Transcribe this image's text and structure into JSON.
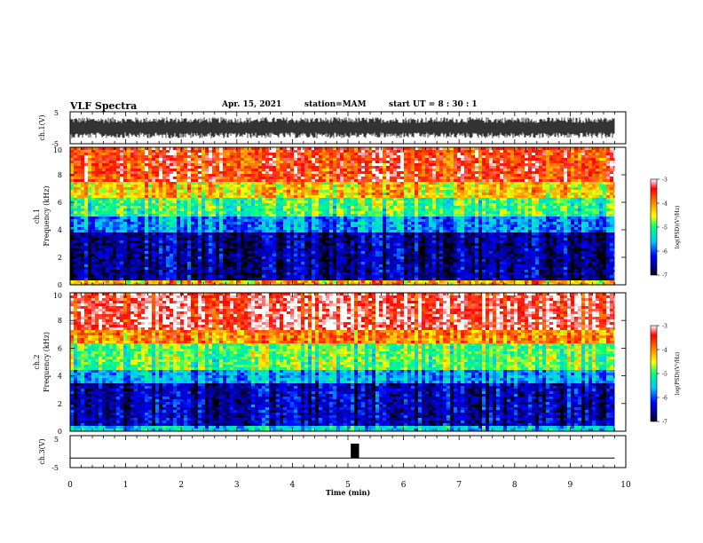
{
  "header": {
    "title": "VLF Spectra",
    "date": "Apr. 15, 2021",
    "station": "station=MAM",
    "start_ut": "start  UT =   8 : 30 : 1"
  },
  "chart_data": [
    {
      "type": "line",
      "panel": "ch1-waveform",
      "ylabel": "ch.1(V)",
      "yticks": [
        "5",
        "-5"
      ],
      "ylim": [
        -5,
        5
      ],
      "x_range": [
        0,
        9.8
      ],
      "description_values": "dense broadband signal, amplitude ~ +3 to -3 V"
    },
    {
      "type": "heatmap",
      "panel": "ch1-spectrogram",
      "ylabel": "ch.1\nFrequency (kHz)",
      "yticks": [
        "0",
        "2",
        "4",
        "6",
        "8",
        "10"
      ],
      "ylim": [
        0,
        10
      ],
      "x_range": [
        0,
        9.8
      ],
      "colorbar": {
        "label": "log(PSD)(V²/Hz)",
        "ticks": [
          "-3",
          "-4",
          "-5",
          "-6",
          "-7"
        ],
        "range": [
          -7,
          -3
        ]
      },
      "bands_log_psd": [
        {
          "freq_khz": [
            0,
            0.5
          ],
          "log_psd": -4.2
        },
        {
          "freq_khz": [
            0.5,
            4
          ],
          "log_psd": -6.6
        },
        {
          "freq_khz": [
            4,
            5
          ],
          "log_psd": -5.8
        },
        {
          "freq_khz": [
            5,
            6.5
          ],
          "log_psd": -5.0
        },
        {
          "freq_khz": [
            6.5,
            7.5
          ],
          "log_psd": -4.3
        },
        {
          "freq_khz": [
            7.5,
            10
          ],
          "log_psd": -3.6
        }
      ]
    },
    {
      "type": "heatmap",
      "panel": "ch2-spectrogram",
      "ylabel": "ch.2\nFrequency (kHz)",
      "yticks": [
        "0",
        "2",
        "4",
        "6",
        "8",
        "10"
      ],
      "ylim": [
        0,
        10
      ],
      "x_range": [
        0,
        9.8
      ],
      "colorbar": {
        "label": "log(PSD)(V²/Hz)",
        "ticks": [
          "-3",
          "-4",
          "-5",
          "-6",
          "-7"
        ],
        "range": [
          -7,
          -3
        ]
      },
      "bands_log_psd": [
        {
          "freq_khz": [
            0,
            0.5
          ],
          "log_psd": -5.5
        },
        {
          "freq_khz": [
            0.5,
            3.5
          ],
          "log_psd": -6.5
        },
        {
          "freq_khz": [
            3.5,
            4.5
          ],
          "log_psd": -5.7
        },
        {
          "freq_khz": [
            4.5,
            6.5
          ],
          "log_psd": -4.9
        },
        {
          "freq_khz": [
            6.5,
            7.5
          ],
          "log_psd": -4.0
        },
        {
          "freq_khz": [
            7.5,
            10
          ],
          "log_psd": -3.3
        }
      ]
    },
    {
      "type": "line",
      "panel": "ch3-waveform",
      "ylabel": "ch.3(V)",
      "yticks": [
        "5",
        "-5"
      ],
      "ylim": [
        -5,
        5
      ],
      "x": [
        0,
        5.05,
        5.05,
        5.2,
        5.2,
        9.8
      ],
      "y": [
        -2,
        -2,
        2.5,
        2.5,
        -2,
        -2
      ],
      "xlabel": "Time (min)",
      "xticks": [
        "0",
        "1",
        "2",
        "3",
        "4",
        "5",
        "6",
        "7",
        "8",
        "9",
        "10"
      ],
      "xlim": [
        0,
        10
      ]
    }
  ]
}
